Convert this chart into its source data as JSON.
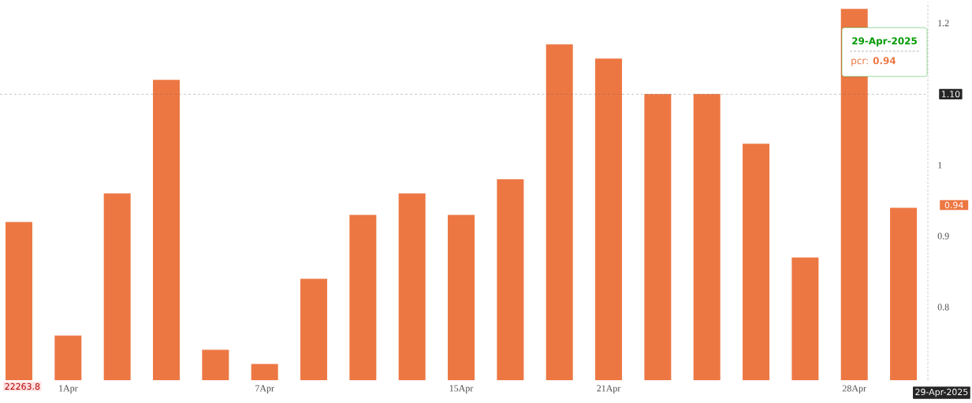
{
  "chart_data": {
    "type": "bar",
    "categories": [
      null,
      "1Apr",
      null,
      null,
      null,
      "7Apr",
      null,
      null,
      null,
      "15Apr",
      null,
      null,
      "21Apr",
      null,
      null,
      null,
      null,
      "28Apr",
      null
    ],
    "values": [
      0.92,
      0.76,
      0.96,
      1.12,
      0.74,
      0.72,
      0.84,
      0.93,
      0.96,
      0.93,
      0.98,
      1.17,
      1.15,
      1.1,
      1.1,
      1.03,
      0.87,
      1.22,
      0.94
    ],
    "color": "#ed7743",
    "ylim": [
      0.697,
      1.229
    ],
    "yticks": [
      0.8,
      0.9,
      1,
      1.2
    ],
    "grid": false,
    "ref_lines": [
      {
        "axis": "y",
        "value": 1.1,
        "label": "1.10",
        "color": "#555555",
        "line_style": "dashed"
      }
    ],
    "annotations": [
      "22263.8",
      "29-Apr-2025",
      "29-Apr-2025",
      "pcr: **0.94**",
      "0.94"
    ]
  }
}
